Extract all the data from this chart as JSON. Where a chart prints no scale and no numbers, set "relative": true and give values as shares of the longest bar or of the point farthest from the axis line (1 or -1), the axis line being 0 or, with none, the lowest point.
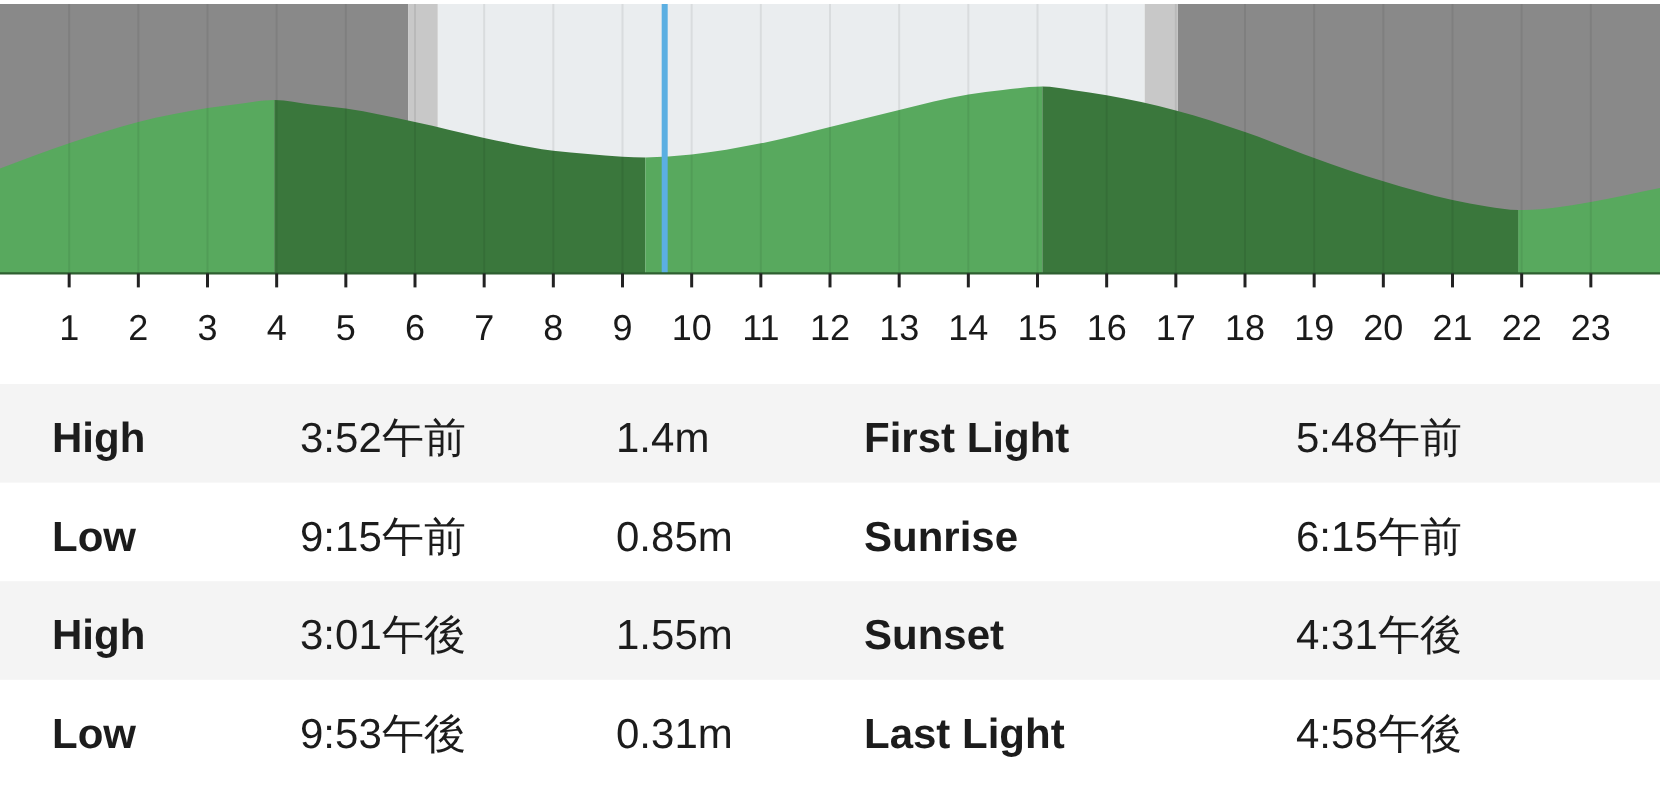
{
  "chart_data": [
    {
      "type": "area",
      "relative": true,
      "xlim": [
        0,
        24
      ],
      "xticks": [
        1,
        2,
        3,
        4,
        5,
        6,
        7,
        8,
        9,
        10,
        11,
        12,
        13,
        14,
        15,
        16,
        17,
        18,
        19,
        20,
        21,
        22,
        23
      ],
      "tick_labels": "x",
      "grid": "x",
      "bands": [
        {
          "axis": "x",
          "from": 0,
          "to": 5.9,
          "color": "#898989"
        },
        {
          "axis": "x",
          "from": 5.9,
          "to": 6.33,
          "color": "#c8c8c8"
        },
        {
          "axis": "x",
          "from": 6.33,
          "to": 16.55,
          "color": "#eaedef"
        },
        {
          "axis": "x",
          "from": 16.55,
          "to": 17.03,
          "color": "#c8c8c8"
        },
        {
          "axis": "x",
          "from": 17.03,
          "to": 24,
          "color": "#898989"
        }
      ],
      "ref_lines": [
        {
          "axis": "x",
          "value": 9.61,
          "color": "#5bafe2"
        }
      ],
      "series": [
        {
          "color": "#58a95e",
          "x": [
            0,
            1,
            2,
            3,
            3.5,
            3.97
          ],
          "values": [
            0.561,
            0.696,
            0.81,
            0.885,
            0.91,
            0.928
          ]
        },
        {
          "color": "#3a773c",
          "x": [
            3.97,
            4.5,
            5,
            6,
            7,
            8,
            8.5,
            9,
            9.33
          ],
          "values": [
            0.928,
            0.904,
            0.882,
            0.81,
            0.725,
            0.657,
            0.639,
            0.625,
            0.621
          ]
        },
        {
          "color": "#58a95e",
          "x": [
            9.33,
            10,
            11,
            12,
            13,
            14,
            14.5,
            15.07
          ],
          "values": [
            0.621,
            0.636,
            0.696,
            0.784,
            0.875,
            0.957,
            0.982,
            1
          ]
        },
        {
          "color": "#3a773c",
          "x": [
            15.07,
            15.5,
            16,
            17,
            18,
            19,
            20,
            21,
            21.5,
            21.95
          ],
          "values": [
            1,
            0.982,
            0.953,
            0.872,
            0.757,
            0.618,
            0.493,
            0.393,
            0.358,
            0.339
          ]
        },
        {
          "color": "#58a95e",
          "x": [
            21.95,
            22.5,
            23,
            24
          ],
          "values": [
            0.339,
            0.353,
            0.382,
            0.457
          ]
        }
      ]
    },
    {
      "type": "other",
      "annotations": [
        "High",
        "3:52午前",
        "1.4m",
        "First Light",
        "5:48午前",
        "Low",
        "9:15午前",
        "0.85m",
        "Sunrise",
        "6:15午前",
        "High",
        "3:01午後",
        "1.55m",
        "Sunset",
        "4:31午後",
        "Low",
        "9:53午後",
        "0.31m",
        "Last Light",
        "4:58午後"
      ]
    }
  ]
}
